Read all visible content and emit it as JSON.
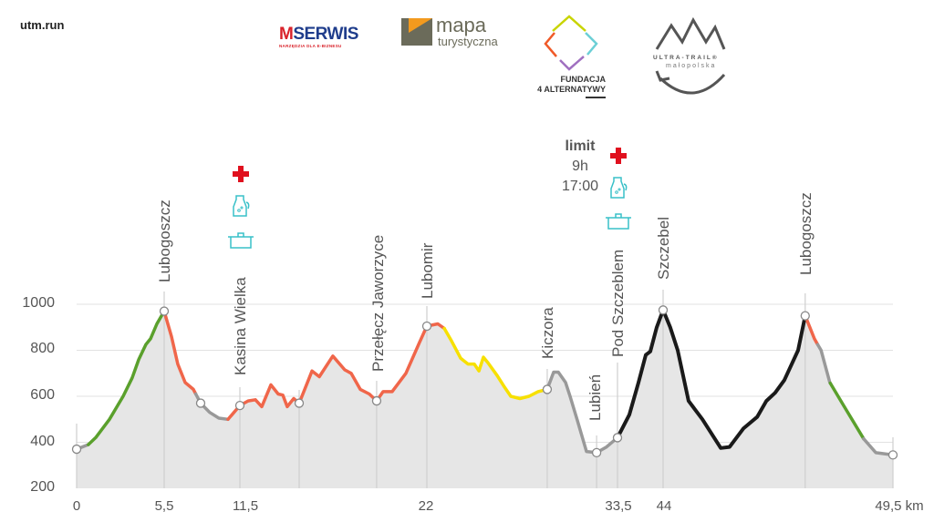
{
  "site": "utm.run",
  "logos": {
    "mserwis": "MSERWIS",
    "mserwis_sub": "NARZĘDZIA DLA E-BIZNESU",
    "mapa": "mapa",
    "mapa_sub": "turystyczna",
    "fundacja_line1": "FUNDACJA",
    "fundacja_line2": "4 ALTERNATYWY",
    "utm_line1": "ULTRA-TRAIL®",
    "utm_line2": "małopolska"
  },
  "limit": {
    "title": "limit",
    "hours": "9h",
    "time": "17:00"
  },
  "colors": {
    "fill": "#e6e6e6",
    "gray": "#999999",
    "green": "#5aa02c",
    "red": "#f0664a",
    "yellow": "#f7e000",
    "black": "#1a1a1a",
    "cross": "#e0101e",
    "icon": "#38c0c8"
  },
  "chart_data": {
    "type": "area",
    "title": "",
    "xlabel": "km",
    "ylabel": "",
    "ylim": [
      200,
      1000
    ],
    "yticks": [
      "1000",
      "800",
      "600",
      "400",
      "200"
    ],
    "ytick_values": [
      1000,
      800,
      600,
      400,
      200
    ],
    "xticks": [
      "0",
      "5,5",
      "11,5",
      "22",
      "33,5",
      "44",
      "49,5 km"
    ],
    "xtick_values": [
      0,
      5.5,
      11.5,
      22,
      33.5,
      44,
      49.5
    ],
    "profile": [
      [
        0,
        370
      ],
      [
        0.74,
        390
      ],
      [
        1.2,
        420
      ],
      [
        2.06,
        500
      ],
      [
        2.92,
        600
      ],
      [
        3.49,
        680
      ],
      [
        3.9,
        760
      ],
      [
        4.35,
        825
      ],
      [
        4.64,
        850
      ],
      [
        5.04,
        915
      ],
      [
        5.5,
        970
      ],
      [
        6.08,
        860
      ],
      [
        6.58,
        740
      ],
      [
        7.16,
        660
      ],
      [
        7.81,
        630
      ],
      [
        8.39,
        570
      ],
      [
        9.11,
        530
      ],
      [
        9.84,
        505
      ],
      [
        10.56,
        500
      ],
      [
        11.5,
        560
      ],
      [
        11.96,
        580
      ],
      [
        12.37,
        585
      ],
      [
        12.73,
        555
      ],
      [
        13.24,
        650
      ],
      [
        13.65,
        610
      ],
      [
        13.91,
        605
      ],
      [
        14.16,
        555
      ],
      [
        14.52,
        590
      ],
      [
        14.83,
        570
      ],
      [
        15.55,
        710
      ],
      [
        15.96,
        685
      ],
      [
        16.72,
        775
      ],
      [
        17.39,
        715
      ],
      [
        17.75,
        700
      ],
      [
        18.26,
        630
      ],
      [
        18.77,
        610
      ],
      [
        19.18,
        580
      ],
      [
        19.54,
        620
      ],
      [
        20.05,
        620
      ],
      [
        20.82,
        700
      ],
      [
        21.59,
        835
      ],
      [
        22,
        905
      ],
      [
        22.66,
        915
      ],
      [
        23.05,
        895
      ],
      [
        23.49,
        840
      ],
      [
        24.04,
        765
      ],
      [
        24.48,
        740
      ],
      [
        24.86,
        740
      ],
      [
        25.14,
        710
      ],
      [
        25.41,
        770
      ],
      [
        25.69,
        745
      ],
      [
        26.24,
        690
      ],
      [
        26.68,
        640
      ],
      [
        27.06,
        600
      ],
      [
        27.61,
        590
      ],
      [
        28.16,
        600
      ],
      [
        28.71,
        620
      ],
      [
        29.26,
        630
      ],
      [
        29.65,
        705
      ],
      [
        29.93,
        705
      ],
      [
        30.37,
        660
      ],
      [
        30.64,
        600
      ],
      [
        31.08,
        495
      ],
      [
        31.63,
        360
      ],
      [
        32.24,
        355
      ],
      [
        32.84,
        380
      ],
      [
        33.5,
        420
      ],
      [
        36.23,
        520
      ],
      [
        38.33,
        660
      ],
      [
        40.01,
        780
      ],
      [
        41.06,
        795
      ],
      [
        42.53,
        900
      ],
      [
        44,
        975
      ],
      [
        44.17,
        900
      ],
      [
        44.35,
        800
      ],
      [
        44.61,
        580
      ],
      [
        44.94,
        500
      ],
      [
        45.38,
        375
      ],
      [
        45.59,
        380
      ],
      [
        45.92,
        460
      ],
      [
        46.25,
        510
      ],
      [
        46.47,
        580
      ],
      [
        46.68,
        615
      ],
      [
        46.9,
        670
      ],
      [
        47.23,
        800
      ],
      [
        47.4,
        950
      ],
      [
        47.62,
        850
      ],
      [
        47.78,
        800
      ],
      [
        47.99,
        660
      ],
      [
        48.32,
        560
      ],
      [
        48.8,
        415
      ],
      [
        49.09,
        355
      ],
      [
        49.5,
        345
      ]
    ],
    "segments": [
      {
        "from": 0,
        "to": 0.74,
        "difficulty": "gray"
      },
      {
        "from": 0.74,
        "to": 5.5,
        "difficulty": "green"
      },
      {
        "from": 5.5,
        "to": 8.0,
        "difficulty": "red"
      },
      {
        "from": 8.0,
        "to": 10.56,
        "difficulty": "gray"
      },
      {
        "from": 10.56,
        "to": 23.05,
        "difficulty": "red"
      },
      {
        "from": 23.05,
        "to": 29.2,
        "difficulty": "yellow"
      },
      {
        "from": 29.2,
        "to": 33.5,
        "difficulty": "gray"
      },
      {
        "from": 33.5,
        "to": 47.4,
        "difficulty": "black"
      },
      {
        "from": 47.4,
        "to": 47.7,
        "difficulty": "red"
      },
      {
        "from": 47.7,
        "to": 48.0,
        "difficulty": "gray"
      },
      {
        "from": 48.0,
        "to": 48.8,
        "difficulty": "green"
      },
      {
        "from": 48.8,
        "to": 49.5,
        "difficulty": "gray"
      }
    ],
    "waypoints": [
      {
        "km": 0,
        "name": ""
      },
      {
        "km": 5.5,
        "name": "Lubogoszcz"
      },
      {
        "km": 8.39,
        "name": ""
      },
      {
        "km": 11.5,
        "name": "Kasina Wielka",
        "aid": [
          "cross",
          "water",
          "food"
        ]
      },
      {
        "km": 14.83,
        "name": ""
      },
      {
        "km": 19.18,
        "name": "Przełęcz Jaworzyce"
      },
      {
        "km": 22,
        "name": "Lubomir"
      },
      {
        "km": 29.26,
        "name": "Kiczora"
      },
      {
        "km": 32.24,
        "name": "Lubień"
      },
      {
        "km": 33.5,
        "name": "Pod Szczeblem",
        "aid": [
          "cross",
          "water",
          "food"
        ]
      },
      {
        "km": 44,
        "name": "Szczebel"
      },
      {
        "km": 47.4,
        "name": "Lubogoszcz"
      },
      {
        "km": 49.5,
        "name": ""
      }
    ]
  }
}
